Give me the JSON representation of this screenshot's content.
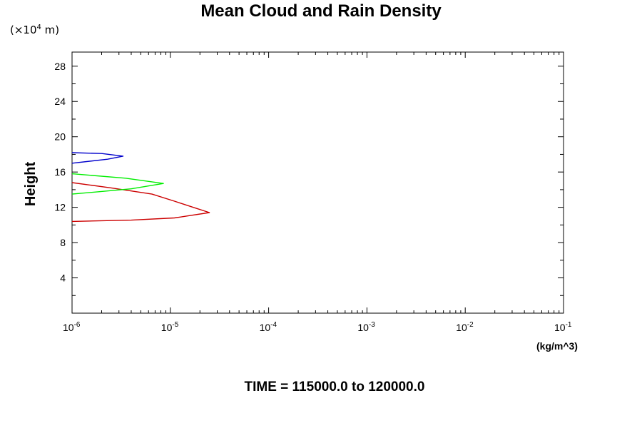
{
  "chart_data": {
    "type": "line",
    "title": "Mean Cloud and Rain Density",
    "ylabel": "Height",
    "y_unit_prefix": "(×10",
    "y_unit_exp": "4",
    "y_unit_suffix": " m)",
    "x_unit": "(kg/m^3)",
    "x_scale": "log",
    "xlim": [
      1e-06,
      0.1
    ],
    "ylim": [
      0,
      29.6
    ],
    "x_ticks": [
      {
        "value": 1e-06,
        "base": "10",
        "exp": "-6"
      },
      {
        "value": 1e-05,
        "base": "10",
        "exp": "-5"
      },
      {
        "value": 0.0001,
        "base": "10",
        "exp": "-4"
      },
      {
        "value": 0.001,
        "base": "10",
        "exp": "-3"
      },
      {
        "value": 0.01,
        "base": "10",
        "exp": "-2"
      },
      {
        "value": 0.1,
        "base": "10",
        "exp": "-1"
      }
    ],
    "y_ticks": [
      "4",
      "8",
      "12",
      "16",
      "20",
      "24",
      "28"
    ],
    "series": [
      {
        "color": "#cc0000",
        "points": [
          {
            "x": 1e-06,
            "y": 10.4
          },
          {
            "x": 4e-06,
            "y": 10.55
          },
          {
            "x": 1.1e-05,
            "y": 10.8
          },
          {
            "x": 2.5e-05,
            "y": 11.4
          },
          {
            "x": 1.7e-05,
            "y": 12.0
          },
          {
            "x": 1.1e-05,
            "y": 12.7
          },
          {
            "x": 6.5e-06,
            "y": 13.5
          },
          {
            "x": 2.5e-06,
            "y": 14.2
          },
          {
            "x": 1e-06,
            "y": 14.8
          }
        ]
      },
      {
        "color": "#00ee00",
        "points": [
          {
            "x": 1e-06,
            "y": 13.5
          },
          {
            "x": 4e-06,
            "y": 14.1
          },
          {
            "x": 8.5e-06,
            "y": 14.7
          },
          {
            "x": 3.5e-06,
            "y": 15.3
          },
          {
            "x": 1e-06,
            "y": 15.8
          }
        ]
      },
      {
        "color": "#0000cc",
        "points": [
          {
            "x": 1e-06,
            "y": 17.0
          },
          {
            "x": 2.3e-06,
            "y": 17.45
          },
          {
            "x": 3.3e-06,
            "y": 17.8
          },
          {
            "x": 2e-06,
            "y": 18.1
          },
          {
            "x": 1e-06,
            "y": 18.2
          }
        ]
      }
    ]
  },
  "footer": {
    "time_label": "TIME = 115000.0 to 120000.0"
  }
}
